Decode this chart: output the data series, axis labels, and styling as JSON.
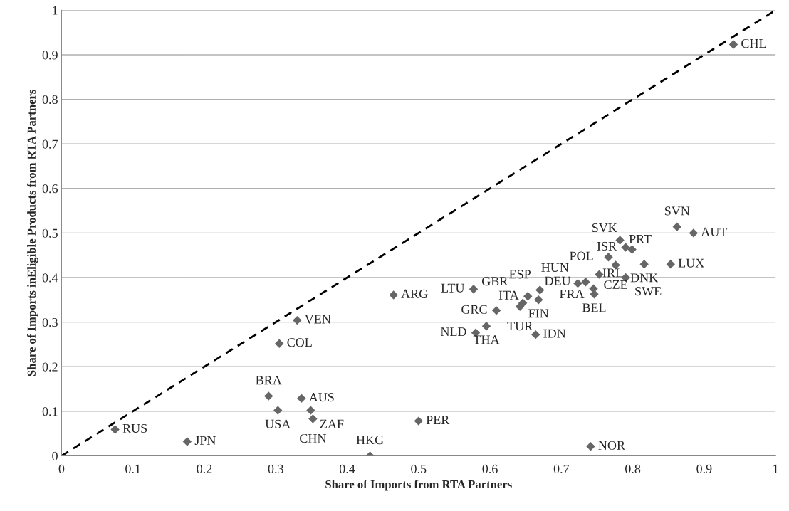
{
  "chart_data": {
    "type": "scatter",
    "xlabel": "Share of Imports from RTA Partners",
    "ylabel": "Share of Imports inEligible Products from RTA Partners",
    "xlim": [
      0,
      1
    ],
    "ylim": [
      0,
      1
    ],
    "xticks": [
      0,
      0.1,
      0.2,
      0.3,
      0.4,
      0.5,
      0.6,
      0.7,
      0.8,
      0.9,
      1
    ],
    "yticks": [
      0,
      0.1,
      0.2,
      0.3,
      0.4,
      0.5,
      0.6,
      0.7,
      0.8,
      0.9,
      1
    ],
    "grid": "y",
    "legend": false,
    "series": [
      {
        "marker": "diamond",
        "color": "#666666",
        "x": [
          0.941,
          0.862,
          0.885,
          0.782,
          0.79,
          0.799,
          0.766,
          0.776,
          0.816,
          0.853,
          0.753,
          0.79,
          0.723,
          0.734,
          0.745,
          0.746,
          0.67,
          0.653,
          0.668,
          0.646,
          0.642,
          0.609,
          0.577,
          0.595,
          0.58,
          0.664,
          0.465,
          0.33,
          0.305,
          0.29,
          0.336,
          0.303,
          0.349,
          0.352,
          0.432,
          0.5,
          0.741,
          0.075,
          0.176
        ],
        "values": [
          0.923,
          0.514,
          0.5,
          0.484,
          0.468,
          0.463,
          0.446,
          0.428,
          0.43,
          0.43,
          0.407,
          0.4,
          0.387,
          0.39,
          0.375,
          0.363,
          0.372,
          0.358,
          0.35,
          0.343,
          0.335,
          0.326,
          0.374,
          0.291,
          0.276,
          0.272,
          0.361,
          0.304,
          0.252,
          0.134,
          0.129,
          0.102,
          0.102,
          0.083,
          0.0,
          0.078,
          0.021,
          0.059,
          0.032
        ]
      },
      {
        "type": "line",
        "marker": "none",
        "line_style": "dashed",
        "color": "#000000",
        "x": [
          0,
          1
        ],
        "values": [
          0,
          1
        ]
      }
    ],
    "annotations": [
      {
        "text": "CHL",
        "x": 0.941,
        "y": 0.923
      },
      {
        "text": "SVN",
        "x": 0.862,
        "y": 0.514
      },
      {
        "text": "AUT",
        "x": 0.885,
        "y": 0.5
      },
      {
        "text": "PRT",
        "x": 0.782,
        "y": 0.484
      },
      {
        "text": "ISR",
        "x": 0.79,
        "y": 0.468
      },
      {
        "text": "SVK",
        "x": 0.799,
        "y": 0.463
      },
      {
        "text": "POL",
        "x": 0.766,
        "y": 0.446
      },
      {
        "text": "CZE",
        "x": 0.776,
        "y": 0.428
      },
      {
        "text": "DNK",
        "x": 0.816,
        "y": 0.43
      },
      {
        "text": "LUX",
        "x": 0.853,
        "y": 0.43
      },
      {
        "text": "FRA",
        "x": 0.753,
        "y": 0.407
      },
      {
        "text": "SWE",
        "x": 0.79,
        "y": 0.4
      },
      {
        "text": "HUN",
        "x": 0.723,
        "y": 0.387
      },
      {
        "text": "DEU",
        "x": 0.734,
        "y": 0.39
      },
      {
        "text": "IRL",
        "x": 0.745,
        "y": 0.375
      },
      {
        "text": "BEL",
        "x": 0.746,
        "y": 0.363
      },
      {
        "text": "ESP",
        "x": 0.67,
        "y": 0.372
      },
      {
        "text": "ITA",
        "x": 0.653,
        "y": 0.358
      },
      {
        "text": "FIN",
        "x": 0.668,
        "y": 0.35
      },
      {
        "text": "GBR",
        "x": 0.646,
        "y": 0.343
      },
      {
        "text": "TUR",
        "x": 0.642,
        "y": 0.335
      },
      {
        "text": "GRC",
        "x": 0.609,
        "y": 0.326
      },
      {
        "text": "LTU",
        "x": 0.577,
        "y": 0.374
      },
      {
        "text": "THA",
        "x": 0.595,
        "y": 0.291
      },
      {
        "text": "NLD",
        "x": 0.58,
        "y": 0.276
      },
      {
        "text": "IDN",
        "x": 0.664,
        "y": 0.272
      },
      {
        "text": "ARG",
        "x": 0.465,
        "y": 0.361
      },
      {
        "text": "VEN",
        "x": 0.33,
        "y": 0.304
      },
      {
        "text": "COL",
        "x": 0.305,
        "y": 0.252
      },
      {
        "text": "BRA",
        "x": 0.29,
        "y": 0.134
      },
      {
        "text": "AUS",
        "x": 0.336,
        "y": 0.129
      },
      {
        "text": "USA",
        "x": 0.303,
        "y": 0.102
      },
      {
        "text": "ZAF",
        "x": 0.349,
        "y": 0.102
      },
      {
        "text": "CHN",
        "x": 0.352,
        "y": 0.083
      },
      {
        "text": "HKG",
        "x": 0.432,
        "y": 0.0
      },
      {
        "text": "PER",
        "x": 0.5,
        "y": 0.078
      },
      {
        "text": "NOR",
        "x": 0.741,
        "y": 0.021
      },
      {
        "text": "RUS",
        "x": 0.075,
        "y": 0.059
      },
      {
        "text": "JPN",
        "x": 0.176,
        "y": 0.032
      }
    ]
  }
}
